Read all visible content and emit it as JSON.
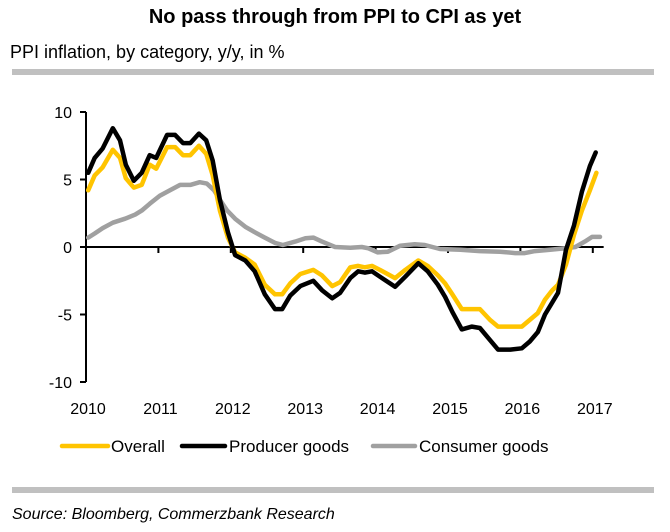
{
  "header": {
    "title": "No pass through from PPI to CPI as yet",
    "subtitle": "PPI inflation, by category, y/y, in %"
  },
  "footer": {
    "source": "Source: Bloomberg, Commerzbank Research"
  },
  "chart_data": {
    "type": "line",
    "title": "No pass through from PPI to CPI as yet",
    "subtitle": "PPI inflation, by category, y/y, in %",
    "xlabel": "",
    "ylabel": "",
    "xlim": [
      2010,
      2017.15
    ],
    "ylim": [
      -10,
      10
    ],
    "yticks": [
      10,
      5,
      0,
      -5,
      -10
    ],
    "ytick_labels": [
      "10",
      "5",
      "0",
      "-5",
      "-10"
    ],
    "xticks": [
      2010,
      2011,
      2012,
      2013,
      2014,
      2015,
      2016,
      2017
    ],
    "xtick_labels": [
      "2010",
      "2011",
      "2012",
      "2013",
      "2014",
      "2015",
      "2016",
      "2017"
    ],
    "grid": false,
    "legend_position": "bottom",
    "series": [
      {
        "name": "Overall",
        "color": "#FFC400",
        "x": [
          2010.03,
          2010.12,
          2010.23,
          2010.37,
          2010.47,
          2010.55,
          2010.66,
          2010.77,
          2010.88,
          2010.97,
          2011.12,
          2011.23,
          2011.34,
          2011.44,
          2011.56,
          2011.66,
          2011.75,
          2011.85,
          2011.96,
          2012.06,
          2012.2,
          2012.33,
          2012.47,
          2012.61,
          2012.71,
          2012.82,
          2012.96,
          2013.14,
          2013.26,
          2013.4,
          2013.51,
          2013.65,
          2013.76,
          2013.85,
          2013.95,
          2014.06,
          2014.27,
          2014.41,
          2014.59,
          2014.72,
          2014.86,
          2014.96,
          2015.06,
          2015.19,
          2015.33,
          2015.44,
          2015.58,
          2015.69,
          2015.86,
          2016.02,
          2016.13,
          2016.24,
          2016.34,
          2016.44,
          2016.52,
          2016.63,
          2016.74,
          2016.85,
          2016.96,
          2017.05
        ],
        "values": [
          4.2,
          5.3,
          5.9,
          7.2,
          6.6,
          5.1,
          4.4,
          4.6,
          6.1,
          5.8,
          7.4,
          7.4,
          6.8,
          6.8,
          7.5,
          6.9,
          5.3,
          2.7,
          0.7,
          -0.4,
          -0.8,
          -1.3,
          -2.8,
          -3.5,
          -3.5,
          -2.7,
          -2.0,
          -1.7,
          -2.1,
          -2.9,
          -2.6,
          -1.5,
          -1.4,
          -1.5,
          -1.4,
          -1.7,
          -2.3,
          -1.7,
          -1.0,
          -1.4,
          -2.1,
          -2.7,
          -3.5,
          -4.6,
          -4.6,
          -4.6,
          -5.4,
          -5.9,
          -5.9,
          -5.9,
          -5.4,
          -4.9,
          -3.9,
          -3.2,
          -2.8,
          -1.3,
          0.9,
          2.7,
          4.2,
          5.5
        ]
      },
      {
        "name": "Producer goods",
        "color": "#000000",
        "x": [
          2010.03,
          2010.12,
          2010.23,
          2010.37,
          2010.47,
          2010.55,
          2010.66,
          2010.77,
          2010.88,
          2010.97,
          2011.12,
          2011.23,
          2011.34,
          2011.44,
          2011.56,
          2011.66,
          2011.75,
          2011.85,
          2011.96,
          2012.06,
          2012.2,
          2012.33,
          2012.47,
          2012.61,
          2012.71,
          2012.82,
          2012.96,
          2013.14,
          2013.26,
          2013.4,
          2013.51,
          2013.65,
          2013.76,
          2013.85,
          2013.95,
          2014.06,
          2014.27,
          2014.41,
          2014.59,
          2014.72,
          2014.86,
          2014.96,
          2015.06,
          2015.19,
          2015.33,
          2015.44,
          2015.58,
          2015.69,
          2015.86,
          2016.02,
          2016.13,
          2016.24,
          2016.34,
          2016.44,
          2016.52,
          2016.63,
          2016.74,
          2016.85,
          2016.96,
          2017.04
        ],
        "values": [
          5.5,
          6.6,
          7.3,
          8.8,
          7.9,
          6.1,
          4.9,
          5.5,
          6.8,
          6.6,
          8.3,
          8.3,
          7.7,
          7.7,
          8.4,
          7.9,
          6.4,
          3.5,
          1.1,
          -0.6,
          -1.0,
          -1.8,
          -3.5,
          -4.6,
          -4.6,
          -3.6,
          -2.9,
          -2.5,
          -3.2,
          -3.8,
          -3.4,
          -2.3,
          -1.8,
          -1.9,
          -1.8,
          -2.2,
          -2.95,
          -2.2,
          -1.2,
          -1.8,
          -2.8,
          -3.7,
          -4.8,
          -6.1,
          -5.9,
          -6.0,
          -6.9,
          -7.6,
          -7.6,
          -7.5,
          -7.0,
          -6.3,
          -5.0,
          -4.1,
          -3.4,
          -0.2,
          1.6,
          4.1,
          6.0,
          7.0
        ]
      },
      {
        "name": "Consumer goods",
        "color": "#A0A0A0",
        "x": [
          2010.03,
          2010.12,
          2010.23,
          2010.37,
          2010.54,
          2010.68,
          2010.77,
          2010.88,
          2011.02,
          2011.16,
          2011.3,
          2011.44,
          2011.57,
          2011.67,
          2011.77,
          2011.85,
          2011.95,
          2012.06,
          2012.2,
          2012.33,
          2012.47,
          2012.61,
          2012.72,
          2012.89,
          2013.03,
          2013.14,
          2013.26,
          2013.44,
          2013.65,
          2013.81,
          2013.9,
          2014.03,
          2014.17,
          2014.34,
          2014.54,
          2014.68,
          2014.89,
          2015.17,
          2015.44,
          2015.72,
          2015.93,
          2016.06,
          2016.2,
          2016.41,
          2016.62,
          2016.76,
          2016.89,
          2016.99,
          2017.1
        ],
        "values": [
          0.7,
          1.0,
          1.4,
          1.8,
          2.1,
          2.4,
          2.7,
          3.2,
          3.8,
          4.2,
          4.6,
          4.6,
          4.8,
          4.7,
          4.2,
          3.5,
          2.7,
          2.1,
          1.5,
          1.1,
          0.7,
          0.3,
          0.15,
          0.4,
          0.65,
          0.7,
          0.4,
          0.0,
          -0.05,
          0.0,
          -0.1,
          -0.4,
          -0.35,
          0.1,
          0.2,
          0.15,
          -0.15,
          -0.2,
          -0.3,
          -0.35,
          -0.45,
          -0.45,
          -0.3,
          -0.2,
          -0.1,
          0.0,
          0.4,
          0.75,
          0.75
        ]
      }
    ]
  }
}
